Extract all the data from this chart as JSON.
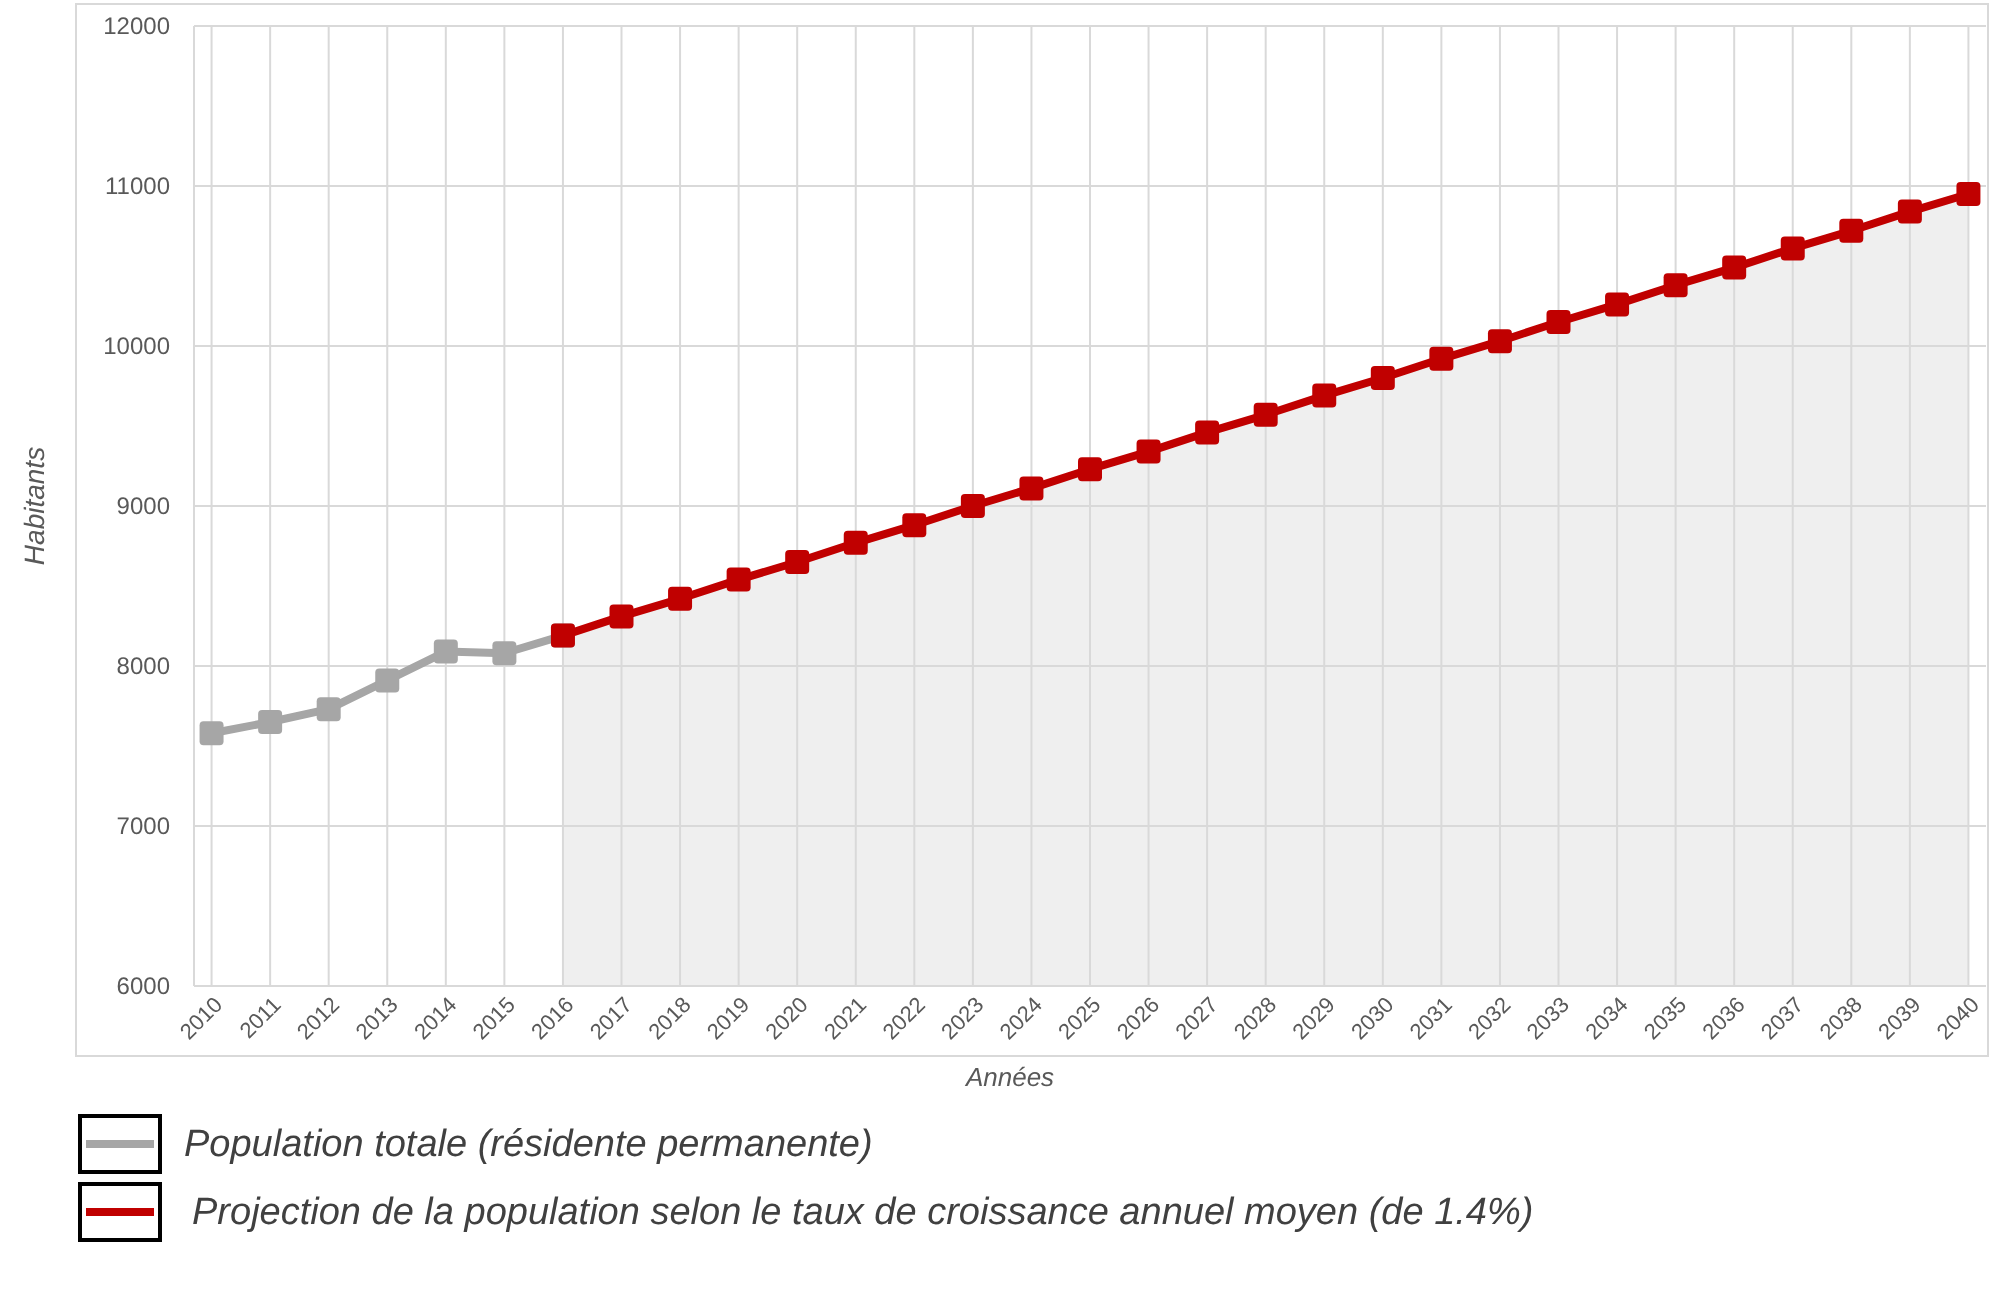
{
  "chart_data": {
    "type": "line",
    "xlabel": "Années",
    "ylabel": "Habitants",
    "categories": [
      "2010",
      "2011",
      "2012",
      "2013",
      "2014",
      "2015",
      "2016",
      "2017",
      "2018",
      "2019",
      "2020",
      "2021",
      "2022",
      "2023",
      "2024",
      "2025",
      "2026",
      "2027",
      "2028",
      "2029",
      "2030",
      "2031",
      "2032",
      "2033",
      "2034",
      "2035",
      "2036",
      "2037",
      "2038",
      "2039",
      "2040"
    ],
    "series": [
      {
        "name": "Population totale (résidente permanente)",
        "color": "#a6a6a6",
        "values": [
          7580,
          7650,
          7730,
          7910,
          8090,
          8080,
          8190,
          null,
          null,
          null,
          null,
          null,
          null,
          null,
          null,
          null,
          null,
          null,
          null,
          null,
          null,
          null,
          null,
          null,
          null,
          null,
          null,
          null,
          null,
          null,
          null
        ]
      },
      {
        "name": "Projection de la population selon le taux de croissance annuel moyen (de 1.4%)",
        "type": "area",
        "color": "#c00000",
        "values": [
          null,
          null,
          null,
          null,
          null,
          null,
          8190,
          8310,
          8420,
          8540,
          8650,
          8770,
          8880,
          9000,
          9110,
          9230,
          9340,
          9460,
          9570,
          9690,
          9800,
          9920,
          10030,
          10150,
          10260,
          10380,
          10490,
          10610,
          10720,
          10840,
          10950
        ]
      }
    ],
    "ylim": [
      6000,
      12000
    ],
    "yticks": [
      6000,
      7000,
      8000,
      9000,
      10000,
      11000,
      12000
    ],
    "grid": true,
    "legend": "bottom",
    "marker": "square",
    "line_style": "solid"
  }
}
